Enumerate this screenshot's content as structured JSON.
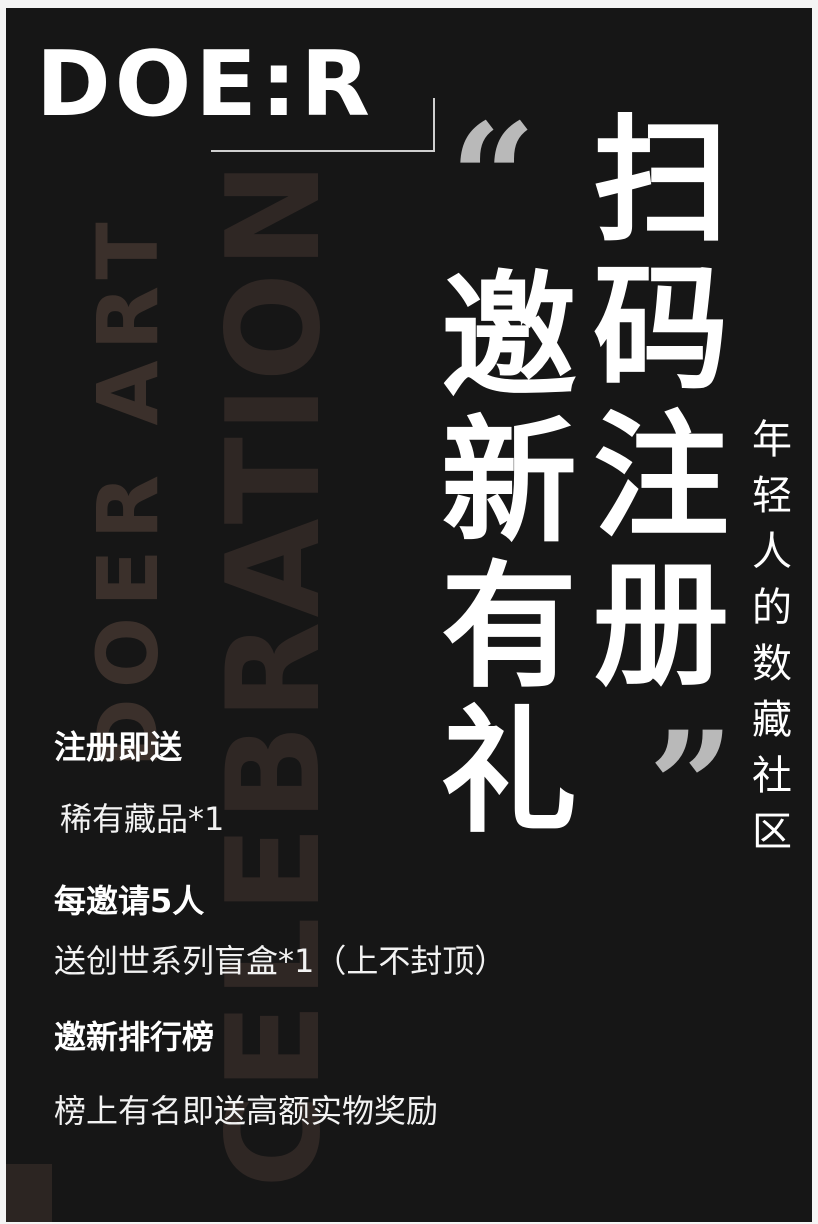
{
  "logo": {
    "text": "DOE:R"
  },
  "watermark": {
    "line1": "DOER ART",
    "line2": "CELEBRATION"
  },
  "quotes": {
    "open": "“",
    "close": "”"
  },
  "headline": {
    "right": [
      "扫",
      "码",
      "注",
      "册"
    ],
    "left": [
      "邀",
      "新",
      "有",
      "礼"
    ]
  },
  "slogan": [
    "年",
    "轻",
    "人",
    "的",
    "数",
    "藏",
    "社",
    "区"
  ],
  "benefits": [
    {
      "title": "注册即送",
      "desc": "稀有藏品*1"
    },
    {
      "title": "每邀请5人",
      "desc": "送创世系列盲盒*1（上不封顶）"
    },
    {
      "title": "邀新排行榜",
      "desc": "榜上有名即送高额实物奖励"
    }
  ],
  "colors": {
    "background": "#161616",
    "text": "#ffffff",
    "quote": "#b9b9b9",
    "watermark": "#3b302b"
  }
}
